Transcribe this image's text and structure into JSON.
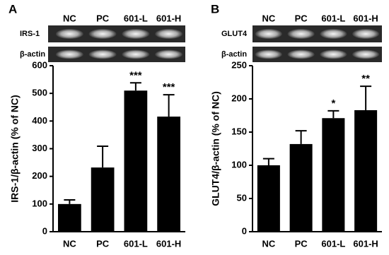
{
  "chart_data": [
    {
      "type": "bar",
      "panel": "A",
      "ylabel": "IRS-1/β-actin (% of NC)",
      "gel_labels": [
        "IRS-1",
        "β-actin"
      ],
      "categories": [
        "NC",
        "PC",
        "601-L",
        "601-H"
      ],
      "values": [
        100,
        232,
        510,
        416
      ],
      "errors": [
        15,
        77,
        28,
        79
      ],
      "annotations": [
        null,
        null,
        "***",
        "***"
      ],
      "color": "#000000",
      "ylim": [
        0,
        600
      ],
      "yticks": [
        0,
        100,
        200,
        300,
        400,
        500,
        600
      ]
    },
    {
      "type": "bar",
      "panel": "B",
      "ylabel": "GLUT4/β-actin (% of NC)",
      "gel_labels": [
        "GLUT4",
        "β-actin"
      ],
      "categories": [
        "NC",
        "PC",
        "601-L",
        "601-H"
      ],
      "values": [
        100,
        132,
        171,
        183
      ],
      "errors": [
        10,
        20,
        11,
        36
      ],
      "annotations": [
        null,
        null,
        "*",
        "**"
      ],
      "color": "#000000",
      "ylim": [
        0,
        250
      ],
      "yticks": [
        0,
        50,
        100,
        150,
        200,
        250
      ]
    }
  ]
}
